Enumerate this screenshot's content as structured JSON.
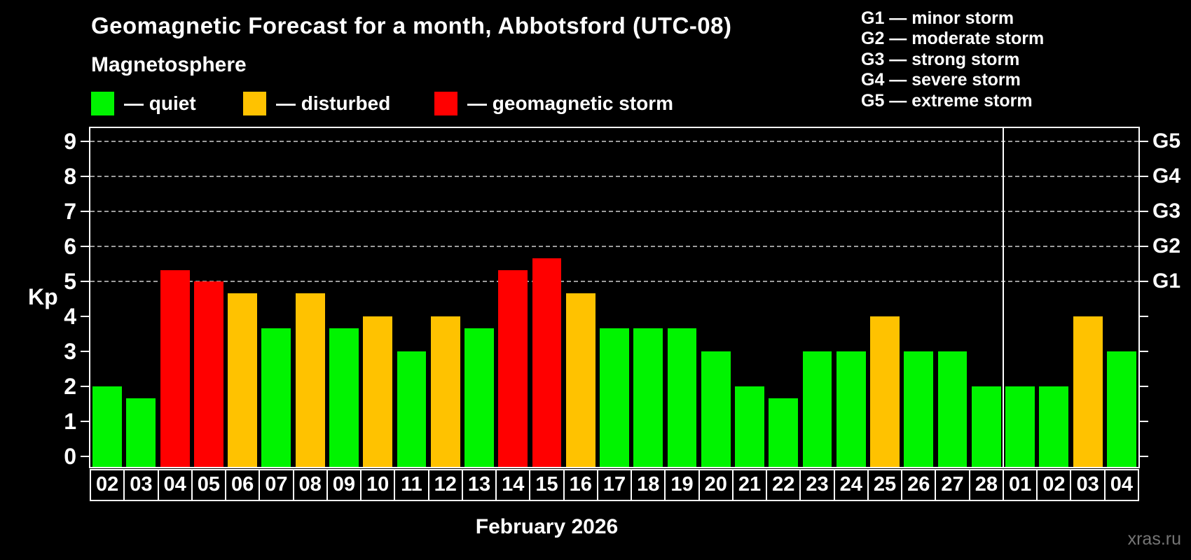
{
  "header": {
    "title": "Geomagnetic Forecast for a month, Abbotsford (UTC-08)",
    "subtitle": "Magnetosphere"
  },
  "legend": {
    "items": [
      {
        "key": "quiet",
        "label": "— quiet",
        "color": "#00f400"
      },
      {
        "key": "disturbed",
        "label": "— disturbed",
        "color": "#ffc200"
      },
      {
        "key": "storm",
        "label": "— geomagnetic storm",
        "color": "#ff0000"
      }
    ]
  },
  "g_legend": {
    "items": [
      "G1 — minor storm",
      "G2 — moderate storm",
      "G3 — strong storm",
      "G4 — severe storm",
      "G5 — extreme storm"
    ]
  },
  "axis": {
    "y_label": "Kp",
    "y_ticks": [
      0,
      1,
      2,
      3,
      4,
      5,
      6,
      7,
      8,
      9
    ],
    "right_labels": [
      {
        "label": "G1",
        "kp": 5
      },
      {
        "label": "G2",
        "kp": 6
      },
      {
        "label": "G3",
        "kp": 7
      },
      {
        "label": "G4",
        "kp": 8
      },
      {
        "label": "G5",
        "kp": 9
      }
    ]
  },
  "chart_data": {
    "type": "bar",
    "title": "Geomagnetic Forecast for a month, Abbotsford (UTC-08)",
    "ylabel": "Kp",
    "ylim": [
      0,
      9
    ],
    "grid": "horizontal dashed lines at Kp 5..9 only",
    "gridlines_at": [
      5,
      6,
      7,
      8,
      9
    ],
    "legend_position": "top-left",
    "categories": [
      "02",
      "03",
      "04",
      "05",
      "06",
      "07",
      "08",
      "09",
      "10",
      "11",
      "12",
      "13",
      "14",
      "15",
      "16",
      "17",
      "18",
      "19",
      "20",
      "21",
      "22",
      "23",
      "24",
      "25",
      "26",
      "27",
      "28",
      "01",
      "02",
      "03",
      "04"
    ],
    "values": [
      2,
      1.67,
      5.33,
      5,
      4.67,
      3.67,
      4.67,
      3.67,
      4,
      3,
      4,
      3.67,
      5.33,
      5.67,
      4.67,
      3.67,
      3.67,
      3.67,
      3,
      2,
      1.67,
      3,
      3,
      4,
      3,
      3,
      2,
      2,
      2,
      4,
      3
    ],
    "status": [
      "quiet",
      "quiet",
      "storm",
      "storm",
      "disturbed",
      "quiet",
      "disturbed",
      "quiet",
      "disturbed",
      "quiet",
      "disturbed",
      "quiet",
      "storm",
      "storm",
      "disturbed",
      "quiet",
      "quiet",
      "quiet",
      "quiet",
      "quiet",
      "quiet",
      "quiet",
      "quiet",
      "disturbed",
      "quiet",
      "quiet",
      "quiet",
      "quiet",
      "quiet",
      "disturbed",
      "quiet"
    ],
    "month_separator_after_index": 26,
    "x_caption": "February 2026"
  },
  "footer": {
    "month_caption": "February 2026",
    "watermark": "xras.ru"
  },
  "colors": {
    "background": "#000000",
    "text": "#ffffff",
    "quiet": "#00f400",
    "disturbed": "#ffc200",
    "storm": "#ff0000",
    "grid": "#9c9c9c",
    "axis": "#ffffff",
    "watermark": "#757575"
  }
}
